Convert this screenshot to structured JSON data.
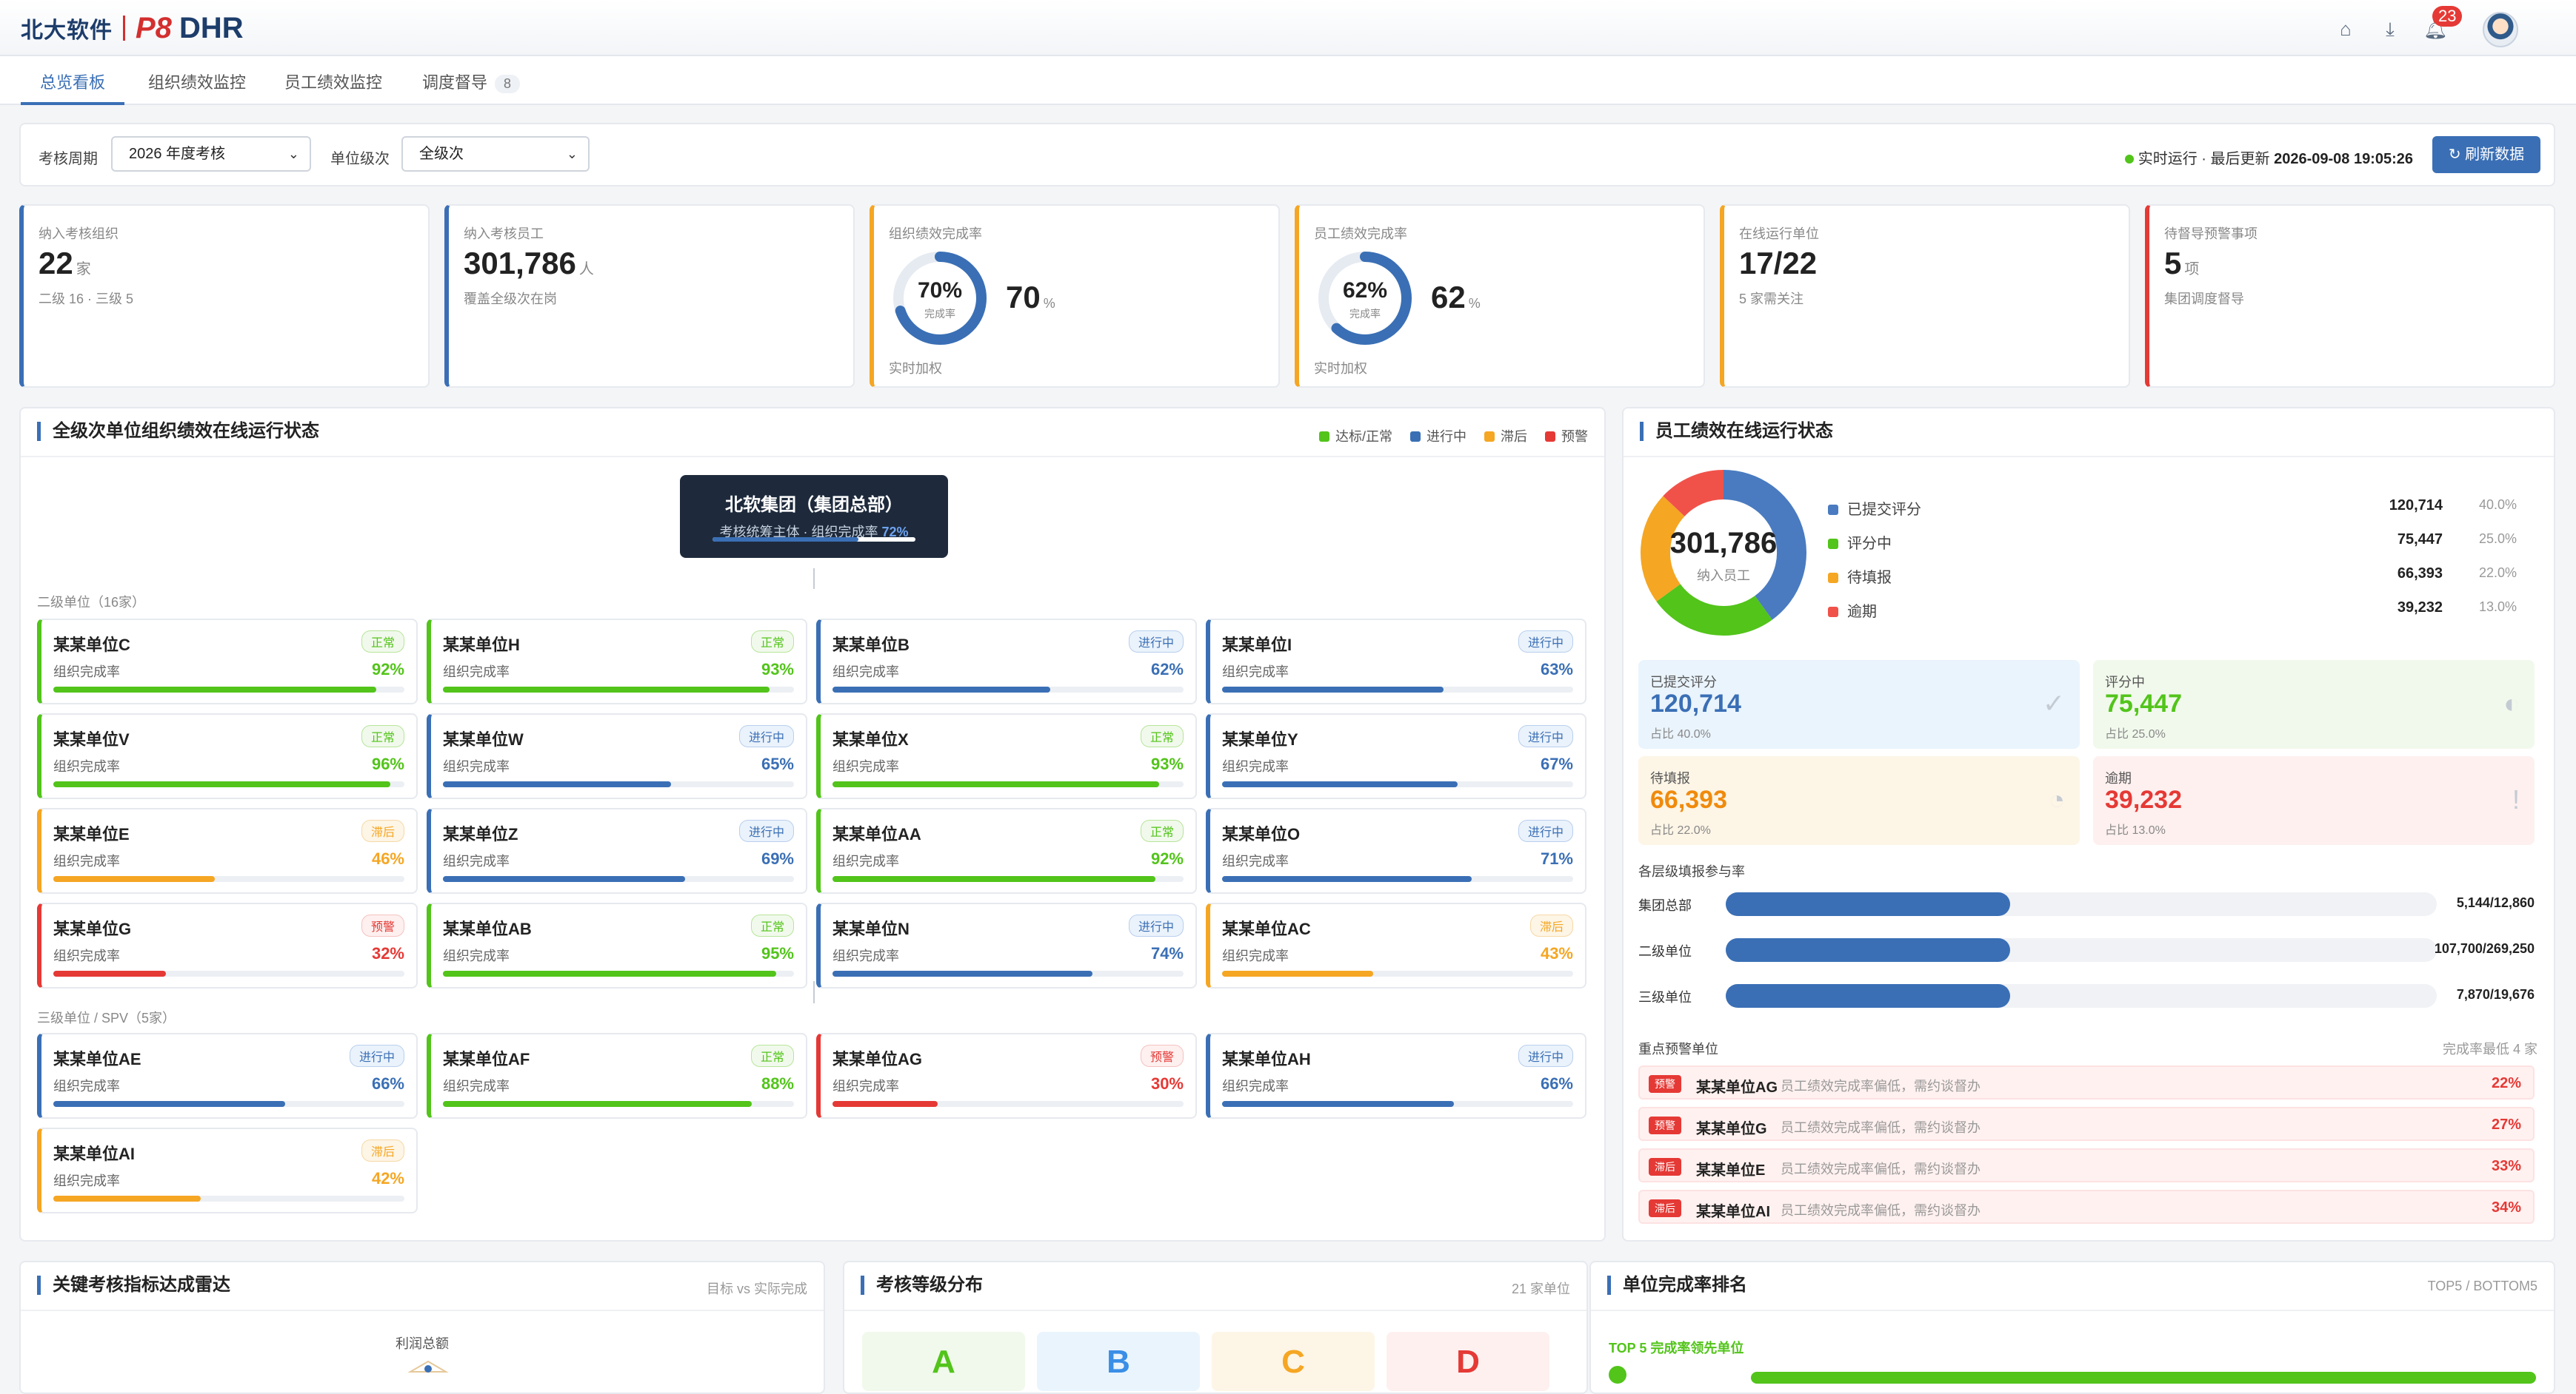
{
  "app": {
    "brand_cn": "北大软件",
    "brand_p8": "P8",
    "brand_dhr": "DHR",
    "notifications": "23"
  },
  "tabs": [
    {
      "label": "总览看板"
    },
    {
      "label": "组织绩效监控"
    },
    {
      "label": "员工绩效监控"
    },
    {
      "label": "调度督导",
      "count": "8"
    }
  ],
  "filter": {
    "period_label": "考核周期",
    "period_value": "2026 年度考核",
    "level_label": "单位级次",
    "level_value": "全级次",
    "live_text": "实时运行 · 最后更新",
    "updated": "2026-09-08 19:05:26",
    "refresh_label": "↻ 刷新数据"
  },
  "kpis": [
    {
      "label": "纳入考核组织",
      "value": "22",
      "unit": "家",
      "sub": "二级 16 · 三级 5",
      "color": "#3a6fb5"
    },
    {
      "label": "纳入考核员工",
      "value": "301,786",
      "unit": "人",
      "sub": "覆盖全级次在岗",
      "color": "#3a6fb5"
    },
    {
      "label": "组织绩效完成率",
      "ring_value": "70%",
      "ring_sub": "完成率",
      "pct": "70",
      "pct_unit": "%",
      "foot": "实时加权",
      "fraction": 0.7,
      "color": "#f5a623"
    },
    {
      "label": "员工绩效完成率",
      "ring_value": "62%",
      "ring_sub": "完成率",
      "pct": "62",
      "pct_unit": "%",
      "foot": "实时加权",
      "fraction": 0.62,
      "color": "#f5a623"
    },
    {
      "label": "在线运行单位",
      "value": "17/22",
      "unit": "",
      "sub": "5 家需关注",
      "color": "#f5a623"
    },
    {
      "label": "待督导预警事项",
      "value": "5",
      "unit": "项",
      "sub": "集团调度督导",
      "color": "#e53935"
    }
  ],
  "org": {
    "title": "全级次单位组织绩效在线运行状态",
    "legend": [
      {
        "label": "达标/正常",
        "color": "#52c41a"
      },
      {
        "label": "进行中",
        "color": "#3a6fb5"
      },
      {
        "label": "滞后",
        "color": "#f5a623"
      },
      {
        "label": "预警",
        "color": "#e53935"
      }
    ],
    "hq_name": "北软集团（集团总部）",
    "hq_sub": "考核统筹主体 · 组织完成率",
    "hq_rate": "72%",
    "group2": "二级单位（16家）",
    "group3": "三级单位 / SPV（5家）",
    "metric_label": "组织完成率",
    "level2": [
      {
        "name": "某某单位C",
        "tag": "正常",
        "pct": "92%",
        "v": 92,
        "s": "g"
      },
      {
        "name": "某某单位H",
        "tag": "正常",
        "pct": "93%",
        "v": 93,
        "s": "g"
      },
      {
        "name": "某某单位B",
        "tag": "进行中",
        "pct": "62%",
        "v": 62,
        "s": "b"
      },
      {
        "name": "某某单位I",
        "tag": "进行中",
        "pct": "63%",
        "v": 63,
        "s": "b"
      },
      {
        "name": "某某单位V",
        "tag": "正常",
        "pct": "96%",
        "v": 96,
        "s": "g"
      },
      {
        "name": "某某单位W",
        "tag": "进行中",
        "pct": "65%",
        "v": 65,
        "s": "b"
      },
      {
        "name": "某某单位X",
        "tag": "正常",
        "pct": "93%",
        "v": 93,
        "s": "g"
      },
      {
        "name": "某某单位Y",
        "tag": "进行中",
        "pct": "67%",
        "v": 67,
        "s": "b"
      },
      {
        "name": "某某单位E",
        "tag": "滞后",
        "pct": "46%",
        "v": 46,
        "s": "o"
      },
      {
        "name": "某某单位Z",
        "tag": "进行中",
        "pct": "69%",
        "v": 69,
        "s": "b"
      },
      {
        "name": "某某单位AA",
        "tag": "正常",
        "pct": "92%",
        "v": 92,
        "s": "g"
      },
      {
        "name": "某某单位O",
        "tag": "进行中",
        "pct": "71%",
        "v": 71,
        "s": "b"
      },
      {
        "name": "某某单位G",
        "tag": "预警",
        "pct": "32%",
        "v": 32,
        "s": "r"
      },
      {
        "name": "某某单位AB",
        "tag": "正常",
        "pct": "95%",
        "v": 95,
        "s": "g"
      },
      {
        "name": "某某单位N",
        "tag": "进行中",
        "pct": "74%",
        "v": 74,
        "s": "b"
      },
      {
        "name": "某某单位AC",
        "tag": "滞后",
        "pct": "43%",
        "v": 43,
        "s": "o"
      }
    ],
    "level3": [
      {
        "name": "某某单位AE",
        "tag": "进行中",
        "pct": "66%",
        "v": 66,
        "s": "b"
      },
      {
        "name": "某某单位AF",
        "tag": "正常",
        "pct": "88%",
        "v": 88,
        "s": "g"
      },
      {
        "name": "某某单位AG",
        "tag": "预警",
        "pct": "30%",
        "v": 30,
        "s": "r"
      },
      {
        "name": "某某单位AH",
        "tag": "进行中",
        "pct": "66%",
        "v": 66,
        "s": "b"
      },
      {
        "name": "某某单位AI",
        "tag": "滞后",
        "pct": "42%",
        "v": 42,
        "s": "o"
      }
    ]
  },
  "emp": {
    "title": "员工绩效在线运行状态",
    "total": "301,786",
    "total_label": "纳入员工",
    "segments": [
      {
        "label": "已提交评分",
        "value": "120,714",
        "pct": "40.0%",
        "share": 40.0,
        "color": "#4a7bc0"
      },
      {
        "label": "评分中",
        "value": "75,447",
        "pct": "25.0%",
        "share": 25.0,
        "color": "#52c41a"
      },
      {
        "label": "待填报",
        "value": "66,393",
        "pct": "22.0%",
        "share": 22.0,
        "color": "#f5a623"
      },
      {
        "label": "逾期",
        "value": "39,232",
        "pct": "13.0%",
        "share": 13.0,
        "color": "#f0524a"
      }
    ],
    "cards": [
      {
        "label": "已提交评分",
        "value": "120,714",
        "pct": "占比 40.0%",
        "icon": "✓",
        "bg": "#eaf4fd",
        "color": "#3a6fb5"
      },
      {
        "label": "评分中",
        "value": "75,447",
        "pct": "占比 25.0%",
        "icon": "◐",
        "bg": "#f1f9ec",
        "color": "#52c41a"
      },
      {
        "label": "待填报",
        "value": "66,393",
        "pct": "占比 22.0%",
        "icon": "◔",
        "bg": "#fdf5e6",
        "color": "#f08a0c"
      },
      {
        "label": "逾期",
        "value": "39,232",
        "pct": "占比 13.0%",
        "icon": "!",
        "bg": "#fdf0ef",
        "color": "#e53935"
      }
    ],
    "participation_title": "各层级填报参与率",
    "participation": [
      {
        "name": "集团总部",
        "value": "5,144/12,860",
        "ratio": 0.4
      },
      {
        "name": "二级单位",
        "value": "107,700/269,250",
        "ratio": 0.4
      },
      {
        "name": "三级单位",
        "value": "7,870/19,676",
        "ratio": 0.4
      }
    ],
    "alerts_title": "重点预警单位",
    "alerts_right": "完成率最低 4 家",
    "alerts": [
      {
        "tag": "预警",
        "name": "某某单位AG",
        "desc": "员工绩效完成率偏低，需约谈督办",
        "pct": "22%"
      },
      {
        "tag": "预警",
        "name": "某某单位G",
        "desc": "员工绩效完成率偏低，需约谈督办",
        "pct": "27%"
      },
      {
        "tag": "滞后",
        "name": "某某单位E",
        "desc": "员工绩效完成率偏低，需约谈督办",
        "pct": "33%"
      },
      {
        "tag": "滞后",
        "name": "某某单位AI",
        "desc": "员工绩效完成率偏低，需约谈督办",
        "pct": "34%"
      }
    ]
  },
  "radar": {
    "title": "关键考核指标达成雷达",
    "right": "目标 vs 实际完成",
    "axis_top": "利润总额"
  },
  "grade": {
    "title": "考核等级分布",
    "right": "21 家单位",
    "grades": [
      {
        "g": "A",
        "color": "#52c41a",
        "bg": "#f1f9ec"
      },
      {
        "g": "B",
        "color": "#3a8ee6",
        "bg": "#eaf4fd"
      },
      {
        "g": "C",
        "color": "#f5a623",
        "bg": "#fdf5e6"
      },
      {
        "g": "D",
        "color": "#e53935",
        "bg": "#fdf0ef"
      }
    ]
  },
  "rank": {
    "title": "单位完成率排名",
    "right": "TOP5 / BOTTOM5",
    "top_label": "TOP 5 完成率领先单位"
  }
}
